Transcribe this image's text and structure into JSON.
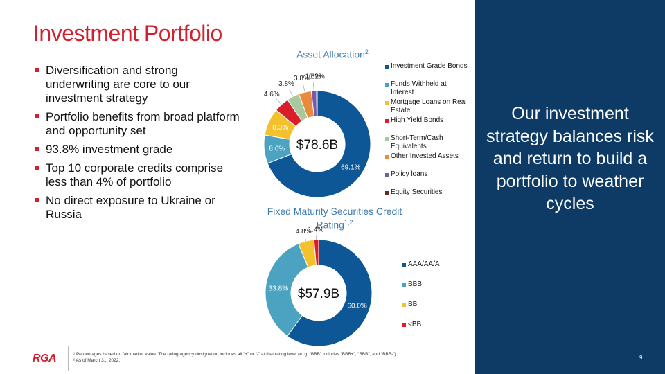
{
  "slide": {
    "title": "Investment Portfolio",
    "page_number": "9",
    "logo": "RGA"
  },
  "bullets": [
    "Diversification and strong underwriting are core to our investment strategy",
    "Portfolio benefits from broad platform and opportunity set",
    "93.8% investment grade",
    "Top 10 corporate credits comprise less than 4% of portfolio",
    "No direct exposure to Ukraine or Russia"
  ],
  "panel": {
    "text": "Our investment strategy balances risk and return to build a portfolio to weather cycles",
    "color": "#0d3b66"
  },
  "footnotes": [
    "¹ Percentages based on fair market value. The rating agency designation includes all “+” or “-” at that rating level (e. g. “BBB” includes “BBB+”, “BBB”, and “BBB-”).",
    "² As of March 31, 2022."
  ],
  "chart_data": [
    {
      "type": "pie",
      "title": "Asset Allocation",
      "title_superscript": "2",
      "center_label": "$78.6B",
      "categories": [
        "Investment Grade Bonds",
        "Funds Withheld at Interest",
        "Mortgage Loans on Real Estate",
        "High Yield Bonds",
        "Short-Term/Cash Equivalents",
        "Other Invested Assets",
        "Policy loans",
        "Equity Securities"
      ],
      "values": [
        69.1,
        8.6,
        8.3,
        4.6,
        3.8,
        3.8,
        1.6,
        0.2
      ],
      "data_labels": [
        "69.1%",
        "8.6%",
        "8.3%",
        "4.6%",
        "3.8%",
        "3.8%",
        "1.6%",
        "0.2%"
      ],
      "colors": [
        "#0d5796",
        "#4ba3c1",
        "#f4c12e",
        "#d91e2a",
        "#a9c89b",
        "#e98a3c",
        "#7a5aa6",
        "#6b2a18"
      ],
      "legend_position": "right"
    },
    {
      "type": "pie",
      "title": "Fixed Maturity Securities Credit Rating",
      "title_superscript": "1,2",
      "center_label": "$57.9B",
      "categories": [
        "AAA/AA/A",
        "BBB",
        "BB",
        "<BB"
      ],
      "values": [
        60.0,
        33.8,
        4.8,
        1.4
      ],
      "data_labels": [
        "60.0%",
        "33.8%",
        "4.8%",
        "1.4%"
      ],
      "colors": [
        "#0d5796",
        "#4ba3c1",
        "#f4c12e",
        "#d91e2a"
      ],
      "legend_position": "right"
    }
  ]
}
